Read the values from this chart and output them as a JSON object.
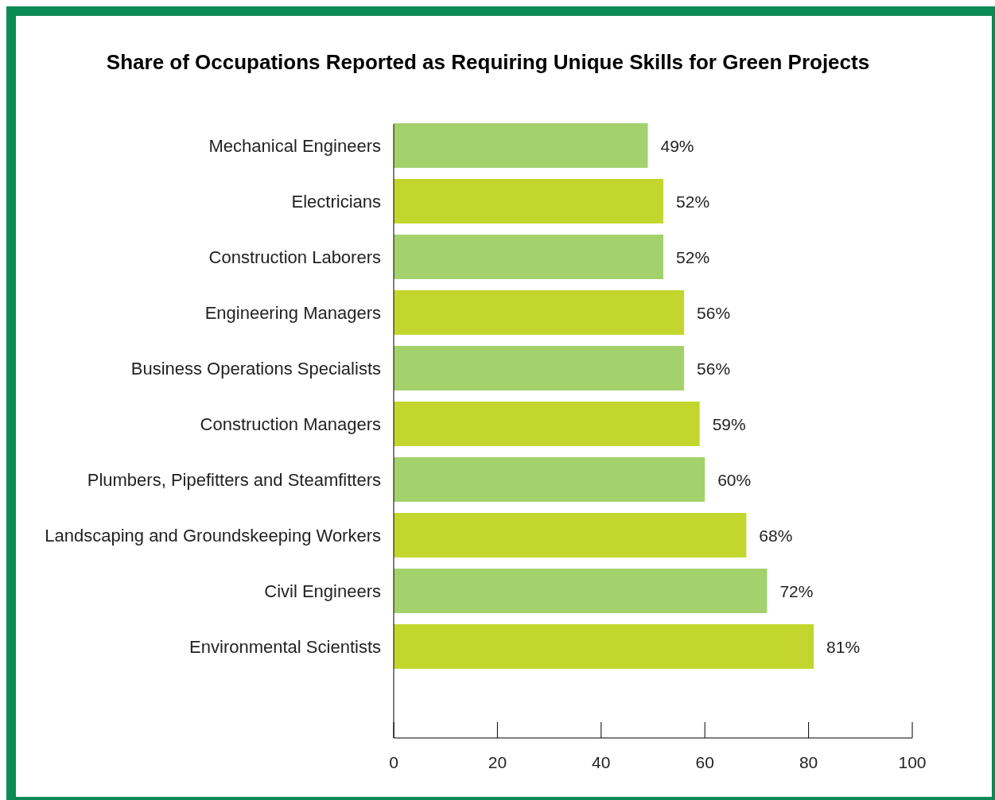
{
  "chart_data": {
    "type": "bar",
    "orientation": "horizontal",
    "title": "Share of Occupations Reported as Requiring Unique Skills for Green Projects",
    "categories": [
      "Mechanical Engineers",
      "Electricians",
      "Construction Laborers",
      "Engineering Managers",
      "Business Operations Specialists",
      "Construction Managers",
      "Plumbers, Pipefitters and Steamfitters",
      "Landscaping and Groundskeeping Workers",
      "Civil Engineers",
      "Environmental Scientists"
    ],
    "values": [
      49,
      52,
      52,
      56,
      56,
      59,
      60,
      68,
      72,
      81
    ],
    "value_labels": [
      "49%",
      "52%",
      "52%",
      "56%",
      "56%",
      "59%",
      "60%",
      "68%",
      "72%",
      "81%"
    ],
    "colors": [
      "#a3d16b",
      "#c2d62e",
      "#a3d16b",
      "#c2d62e",
      "#a3d16b",
      "#c2d62e",
      "#a3d16b",
      "#c2d62e",
      "#a3d16b",
      "#c2d62e"
    ],
    "xlim": [
      0,
      100
    ],
    "xticks": [
      0,
      20,
      40,
      60,
      80,
      100
    ],
    "grid": false
  }
}
